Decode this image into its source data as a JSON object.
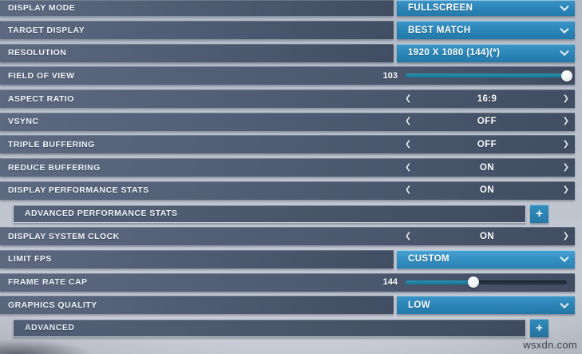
{
  "watermark": "wsxdn.com",
  "icons": {
    "left_arrow": "❮",
    "right_arrow": "❯",
    "plus": "+"
  },
  "colors": {
    "row_bar": "#4d5a71",
    "dropdown_blue": "#2c87ba",
    "dropdown_highlight": "#3591c4",
    "slider_fill": "#1d82a0",
    "slider_track": "#27303f",
    "knob": "#e9ecef",
    "label_text": "#f1f4f8",
    "background": "#bfc5cf"
  },
  "rows": [
    {
      "type": "dropdown",
      "label": "DISPLAY MODE",
      "value": "FULLSCREEN"
    },
    {
      "type": "dropdown",
      "label": "TARGET DISPLAY",
      "value": "BEST MATCH"
    },
    {
      "type": "dropdown",
      "label": "RESOLUTION",
      "value": "1920 X 1080 (144)(*)"
    },
    {
      "type": "slider",
      "label": "FIELD OF VIEW",
      "value": "103",
      "percent": 100
    },
    {
      "type": "stepper",
      "label": "ASPECT RATIO",
      "value": "16:9"
    },
    {
      "type": "stepper",
      "label": "VSYNC",
      "value": "OFF"
    },
    {
      "type": "stepper",
      "label": "TRIPLE BUFFERING",
      "value": "OFF"
    },
    {
      "type": "stepper",
      "label": "REDUCE BUFFERING",
      "value": "ON"
    },
    {
      "type": "stepper",
      "label": "DISPLAY PERFORMANCE STATS",
      "value": "ON"
    },
    {
      "type": "expand",
      "label": "ADVANCED PERFORMANCE STATS"
    },
    {
      "type": "stepper",
      "label": "DISPLAY SYSTEM CLOCK",
      "value": "ON"
    },
    {
      "type": "dropdown",
      "label": "LIMIT FPS",
      "value": "CUSTOM",
      "highlight": true
    },
    {
      "type": "slider",
      "label": "FRAME RATE CAP",
      "value": "144",
      "percent": 42
    },
    {
      "type": "dropdown",
      "label": "GRAPHICS QUALITY",
      "value": "LOW"
    },
    {
      "type": "expand",
      "label": "ADVANCED"
    }
  ]
}
